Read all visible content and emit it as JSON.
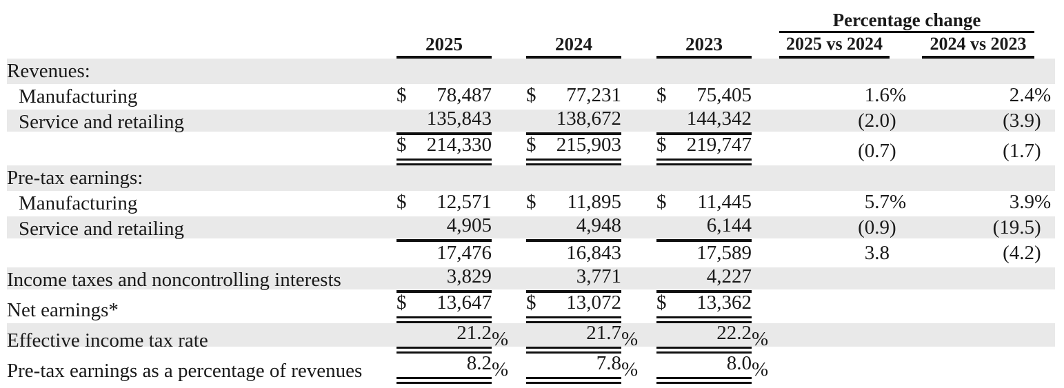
{
  "table": {
    "pct_change_title": "Percentage change",
    "columns": [
      "2025",
      "2024",
      "2023",
      "2025 vs 2024",
      "2024 vs 2023"
    ],
    "rows": [
      {
        "label": "Revenues:",
        "section": true,
        "shaded": true,
        "indent": false,
        "rule": "none",
        "cells": [
          {},
          {},
          {},
          {},
          {}
        ]
      },
      {
        "label": "Manufacturing",
        "section": false,
        "shaded": false,
        "indent": true,
        "rule": "none",
        "cells": [
          {
            "cur": "$",
            "v": "78,487"
          },
          {
            "cur": "$",
            "v": "77,231"
          },
          {
            "cur": "$",
            "v": "75,405"
          },
          {
            "v": "1.6%"
          },
          {
            "v": "2.4%"
          }
        ]
      },
      {
        "label": "Service and retailing",
        "section": false,
        "shaded": true,
        "indent": true,
        "rule": "single",
        "cells": [
          {
            "v": "135,843"
          },
          {
            "v": "138,672"
          },
          {
            "v": "144,342"
          },
          {
            "v": "(2.0)"
          },
          {
            "v": "(3.9)"
          }
        ]
      },
      {
        "label": "",
        "section": false,
        "shaded": false,
        "indent": false,
        "rule": "double",
        "cells": [
          {
            "cur": "$",
            "v": "214,330"
          },
          {
            "cur": "$",
            "v": "215,903"
          },
          {
            "cur": "$",
            "v": "219,747"
          },
          {
            "v": "(0.7)"
          },
          {
            "v": "(1.7)"
          }
        ]
      },
      {
        "label": "Pre-tax earnings:",
        "section": true,
        "shaded": true,
        "indent": false,
        "rule": "none",
        "cells": [
          {},
          {},
          {},
          {},
          {}
        ]
      },
      {
        "label": "Manufacturing",
        "section": false,
        "shaded": false,
        "indent": true,
        "rule": "none",
        "cells": [
          {
            "cur": "$",
            "v": "12,571"
          },
          {
            "cur": "$",
            "v": "11,895"
          },
          {
            "cur": "$",
            "v": "11,445"
          },
          {
            "v": "5.7%"
          },
          {
            "v": "3.9%"
          }
        ]
      },
      {
        "label": "Service and retailing",
        "section": false,
        "shaded": true,
        "indent": true,
        "rule": "single",
        "cells": [
          {
            "v": "4,905"
          },
          {
            "v": "4,948"
          },
          {
            "v": "6,144"
          },
          {
            "v": "(0.9)"
          },
          {
            "v": "(19.5)"
          }
        ]
      },
      {
        "label": "",
        "section": false,
        "shaded": false,
        "indent": false,
        "rule": "none",
        "cells": [
          {
            "v": "17,476"
          },
          {
            "v": "16,843"
          },
          {
            "v": "17,589"
          },
          {
            "v": "3.8"
          },
          {
            "v": "(4.2)"
          }
        ]
      },
      {
        "label": "Income taxes and noncontrolling interests",
        "section": false,
        "shaded": true,
        "indent": false,
        "rule": "single",
        "cells": [
          {
            "v": "3,829"
          },
          {
            "v": "3,771"
          },
          {
            "v": "4,227"
          },
          {},
          {}
        ]
      },
      {
        "label": "Net earnings*",
        "section": false,
        "shaded": false,
        "indent": false,
        "rule": "double",
        "cells": [
          {
            "cur": "$",
            "v": "13,647"
          },
          {
            "cur": "$",
            "v": "13,072"
          },
          {
            "cur": "$",
            "v": "13,362"
          },
          {},
          {}
        ]
      },
      {
        "label": "Effective income tax rate",
        "section": false,
        "shaded": true,
        "indent": false,
        "rule": "double",
        "cells": [
          {
            "v": "21.2%"
          },
          {
            "v": "21.7%"
          },
          {
            "v": "22.2%"
          },
          {},
          {}
        ]
      },
      {
        "label": "Pre-tax earnings as a percentage of revenues",
        "section": false,
        "shaded": false,
        "indent": false,
        "rule": "double",
        "cells": [
          {
            "v": "8.2%"
          },
          {
            "v": "7.8%"
          },
          {
            "v": "8.0%"
          },
          {},
          {}
        ]
      }
    ]
  },
  "colors": {
    "row_shade": "#e9e9e9",
    "text": "#1a1a1a",
    "rule": "#0f0f0f"
  }
}
